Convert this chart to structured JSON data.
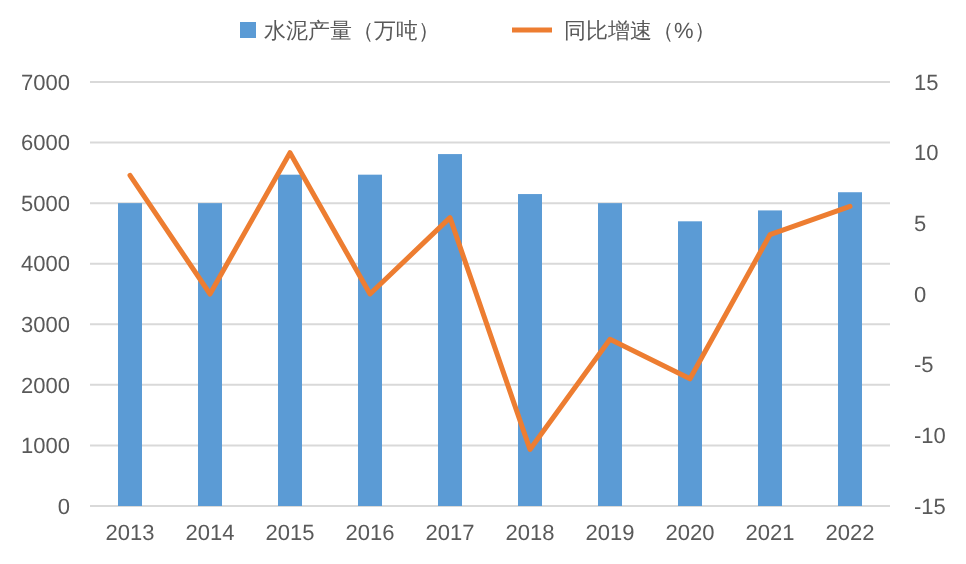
{
  "chart_data": {
    "type": "bar",
    "categories": [
      "2013",
      "2014",
      "2015",
      "2016",
      "2017",
      "2018",
      "2019",
      "2020",
      "2021",
      "2022"
    ],
    "series": [
      {
        "name": "水泥产量（万吨）",
        "color": "#5b9bd5",
        "values": [
          5000,
          5000,
          5470,
          5470,
          5810,
          5150,
          5000,
          4700,
          4880,
          5180
        ]
      },
      {
        "name": "同比增速（%）",
        "type": "line",
        "axis": "y2",
        "color": "#ed7d31",
        "values": [
          8.4,
          0,
          10,
          0,
          5.4,
          -11,
          -3.2,
          -6,
          4.2,
          6.2
        ]
      }
    ],
    "ylim": [
      0,
      7000
    ],
    "yticks": [
      0,
      1000,
      2000,
      3000,
      4000,
      5000,
      6000,
      7000
    ],
    "y2lim": [
      -15,
      15
    ],
    "y2ticks": [
      -15,
      -10,
      -5,
      0,
      5,
      10,
      15
    ],
    "grid": "y",
    "legend": "top",
    "marker": "none",
    "line_style": "solid"
  }
}
